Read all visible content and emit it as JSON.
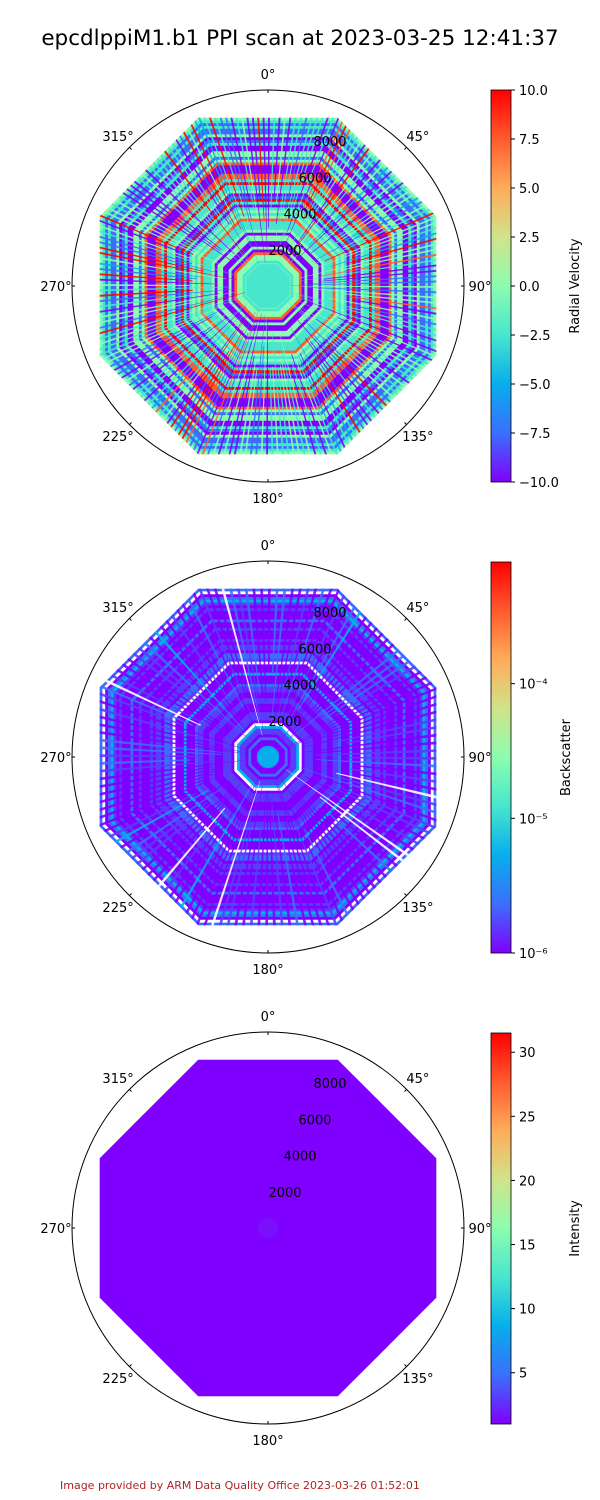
{
  "title": "epcdlppiM1.b1 PPI scan at 2023-03-25 12:41:37",
  "footer": "Image provided by ARM Data Quality Office 2023-03-26 01:52:01",
  "colors": {
    "footer": "#b22222",
    "colormap": [
      "#8000ff",
      "#3b6ffb",
      "#06aeed",
      "#47e6cd",
      "#8cfdaf",
      "#d0e48a",
      "#ffac59",
      "#ff5b2e",
      "#ff0000"
    ]
  },
  "chart_data": [
    {
      "type": "polar",
      "variable": "radial_velocity",
      "colorbar_label": "Radial Velocity",
      "clim": [
        -10,
        10
      ],
      "colorbar_scale": "linear",
      "colorbar_ticks": [
        "10.0",
        "7.5",
        "5.0",
        "2.5",
        "0.0",
        "−2.5",
        "−5.0",
        "−7.5",
        "−10.0"
      ],
      "colorbar_tick_values": [
        10,
        7.5,
        5,
        2.5,
        0,
        -2.5,
        -5,
        -7.5,
        -10
      ],
      "angle_labels": [
        "0°",
        "45°",
        "90°",
        "135°",
        "180°",
        "225°",
        "270°",
        "315°"
      ],
      "range_labels": [
        "2000",
        "4000",
        "6000",
        "8000"
      ],
      "range_values": [
        2000,
        4000,
        6000,
        8000
      ],
      "rmax": 10000,
      "data_extent": 9300,
      "pattern": "striped"
    },
    {
      "type": "polar",
      "variable": "backscatter",
      "colorbar_label": "Backscatter",
      "clim": [
        1e-06,
        0.0008
      ],
      "colorbar_scale": "log",
      "colorbar_ticks": [
        "10⁻⁴",
        "10⁻⁵",
        "10⁻⁶"
      ],
      "colorbar_tick_values": [
        0.0001,
        1e-05,
        1e-06
      ],
      "angle_labels": [
        "0°",
        "45°",
        "90°",
        "135°",
        "180°",
        "225°",
        "270°",
        "315°"
      ],
      "range_labels": [
        "2000",
        "4000",
        "6000",
        "8000"
      ],
      "range_values": [
        2000,
        4000,
        6000,
        8000
      ],
      "rmax": 10000,
      "data_extent": 9300,
      "pattern": "low_values_with_gaps"
    },
    {
      "type": "polar",
      "variable": "intensity",
      "colorbar_label": "Intensity",
      "clim": [
        1,
        31.5
      ],
      "colorbar_scale": "linear",
      "colorbar_ticks": [
        "30",
        "25",
        "20",
        "15",
        "10",
        "5"
      ],
      "colorbar_tick_values": [
        30,
        25,
        20,
        15,
        10,
        5
      ],
      "angle_labels": [
        "0°",
        "45°",
        "90°",
        "135°",
        "180°",
        "225°",
        "270°",
        "315°"
      ],
      "range_labels": [
        "2000",
        "4000",
        "6000",
        "8000"
      ],
      "range_values": [
        2000,
        4000,
        6000,
        8000
      ],
      "rmax": 10000,
      "data_extent": 9300,
      "pattern": "uniform_minimum"
    }
  ]
}
